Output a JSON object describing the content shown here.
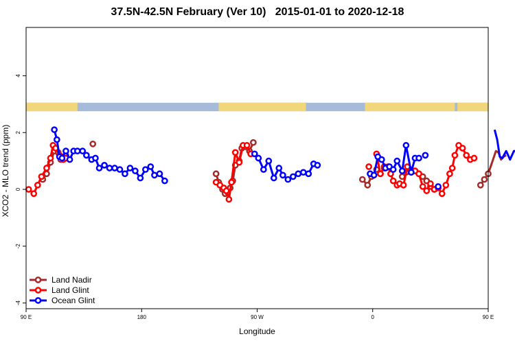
{
  "chart_data": {
    "type": "line",
    "title": "37.5N-42.5N February (Ver 10)   2015-01-01 to 2020-12-18",
    "xlabel": "Longitude",
    "ylabel": "XCO2 - MLO trend (ppm)",
    "xlim": [
      90,
      450
    ],
    "ylim": [
      -4.2,
      5.7
    ],
    "x_ticks": [
      {
        "value": 90,
        "label": "90 E"
      },
      {
        "value": 180,
        "label": "180"
      },
      {
        "value": 270,
        "label": "90 W"
      },
      {
        "value": 360,
        "label": "0"
      },
      {
        "value": 450,
        "label": "90 E"
      },
      {
        "value": 540,
        "label": "180"
      }
    ],
    "y_ticks": [
      {
        "value": -4,
        "label": "-4"
      },
      {
        "value": -2,
        "label": "-2"
      },
      {
        "value": 0,
        "label": "0"
      },
      {
        "value": 2,
        "label": "2"
      },
      {
        "value": 4,
        "label": "4"
      }
    ],
    "legend_position": "bottom-left",
    "series": [
      {
        "name": "Land Nadir",
        "color": "#a52a2a",
        "segments": [
          [
            [
              103,
              0.35
            ],
            [
              106,
              0.55
            ],
            [
              109,
              0.95
            ],
            [
              112,
              1.35
            ],
            [
              115,
              1.3
            ],
            [
              117,
              1.05
            ],
            [
              119,
              1.15
            ],
            [
              121,
              1.2
            ]
          ],
          [
            [
              142,
              1.6
            ]
          ],
          [
            [
              238,
              0.55
            ],
            [
              240,
              0.25
            ],
            [
              243,
              0.0
            ],
            [
              245,
              -0.15
            ],
            [
              247,
              -0.1
            ],
            [
              249,
              0.05
            ],
            [
              251,
              0.3
            ],
            [
              253,
              0.85
            ],
            [
              256,
              1.0
            ],
            [
              258,
              1.45
            ],
            [
              261,
              1.5
            ],
            [
              264,
              1.35
            ],
            [
              267,
              1.65
            ]
          ],
          [
            [
              352,
              0.35
            ],
            [
              356,
              0.15
            ],
            [
              359,
              0.45
            ],
            [
              363,
              0.7
            ],
            [
              366,
              0.55
            ],
            [
              369,
              0.75
            ]
          ],
          [
            [
              383,
              0.45
            ],
            [
              386,
              0.6
            ],
            [
              389,
              0.7
            ],
            [
              393,
              0.65
            ],
            [
              396,
              0.55
            ],
            [
              399,
              0.45
            ],
            [
              402,
              0.3
            ],
            [
              405,
              0.1
            ],
            [
              408,
              0.0
            ]
          ],
          [
            [
              444,
              0.15
            ],
            [
              447,
              0.35
            ],
            [
              450,
              0.55
            ],
            [
              453,
              0.95
            ],
            [
              456,
              1.35
            ],
            [
              458,
              1.3
            ],
            [
              460,
              1.05
            ],
            [
              462,
              1.15
            ],
            [
              464,
              1.2
            ]
          ],
          [
            [
              485,
              1.6
            ]
          ]
        ]
      },
      {
        "name": "Land Glint",
        "color": "#ff0000",
        "segments": [
          [
            [
              92,
              0.0
            ],
            [
              96,
              -0.15
            ],
            [
              99,
              0.15
            ],
            [
              102,
              0.45
            ],
            [
              106,
              0.75
            ],
            [
              109,
              1.1
            ],
            [
              111,
              1.55
            ],
            [
              113,
              1.45
            ],
            [
              116,
              1.2
            ],
            [
              119,
              1.05
            ],
            [
              121,
              1.1
            ]
          ],
          [
            [
              238,
              0.25
            ],
            [
              241,
              0.15
            ],
            [
              244,
              0.05
            ],
            [
              246,
              -0.05
            ],
            [
              248,
              -0.35
            ],
            [
              250,
              0.25
            ],
            [
              253,
              1.3
            ],
            [
              256,
              0.95
            ],
            [
              259,
              1.55
            ],
            [
              262,
              1.55
            ],
            [
              265,
              1.25
            ]
          ],
          [
            [
              357,
              0.8
            ]
          ],
          [
            [
              363,
              1.25
            ],
            [
              366,
              0.55
            ],
            [
              369,
              0.8
            ],
            [
              372,
              0.8
            ],
            [
              374,
              0.55
            ],
            [
              376,
              0.3
            ],
            [
              379,
              0.15
            ],
            [
              381,
              0.2
            ],
            [
              384,
              0.15
            ],
            [
              387,
              0.8
            ],
            [
              390,
              0.6
            ],
            [
              393,
              0.65
            ],
            [
              396,
              0.55
            ],
            [
              399,
              0.1
            ],
            [
              402,
              -0.05
            ],
            [
              405,
              0.2
            ],
            [
              408,
              0.0
            ],
            [
              411,
              0.05
            ],
            [
              414,
              -0.15
            ],
            [
              417,
              0.15
            ],
            [
              420,
              0.55
            ],
            [
              422,
              0.75
            ],
            [
              424,
              1.2
            ],
            [
              427,
              1.55
            ],
            [
              430,
              1.45
            ],
            [
              433,
              1.2
            ],
            [
              436,
              1.05
            ],
            [
              439,
              1.1
            ]
          ]
        ]
      },
      {
        "name": "Ocean Glint",
        "color": "#0000ff",
        "segments": [
          [
            [
              112,
              2.1
            ],
            [
              114,
              1.75
            ],
            [
              116,
              1.15
            ],
            [
              118,
              1.1
            ],
            [
              121,
              1.35
            ],
            [
              124,
              1.05
            ],
            [
              127,
              1.35
            ],
            [
              130,
              1.35
            ],
            [
              134,
              1.35
            ],
            [
              137,
              1.2
            ],
            [
              141,
              1.05
            ],
            [
              144,
              1.1
            ],
            [
              147,
              0.75
            ],
            [
              151,
              0.85
            ],
            [
              155,
              0.75
            ],
            [
              159,
              0.75
            ],
            [
              163,
              0.7
            ],
            [
              167,
              0.55
            ],
            [
              171,
              0.75
            ],
            [
              175,
              0.65
            ],
            [
              179,
              0.4
            ],
            [
              183,
              0.7
            ],
            [
              187,
              0.8
            ],
            [
              190,
              0.5
            ],
            [
              194,
              0.55
            ],
            [
              198,
              0.3
            ]
          ],
          [
            [
              268,
              1.25
            ],
            [
              271,
              1.1
            ],
            [
              275,
              0.7
            ],
            [
              279,
              1.0
            ],
            [
              283,
              0.4
            ],
            [
              287,
              0.75
            ],
            [
              290,
              0.5
            ],
            [
              294,
              0.35
            ],
            [
              298,
              0.45
            ],
            [
              302,
              0.55
            ],
            [
              306,
              0.6
            ],
            [
              310,
              0.55
            ],
            [
              314,
              0.9
            ],
            [
              317,
              0.85
            ]
          ],
          [
            [
              358,
              0.55
            ],
            [
              361,
              0.5
            ],
            [
              364,
              1.15
            ],
            [
              367,
              1.05
            ],
            [
              370,
              0.75
            ],
            [
              373,
              0.8
            ],
            [
              376,
              0.7
            ],
            [
              379,
              1.0
            ],
            [
              383,
              0.65
            ],
            [
              386,
              1.55
            ],
            [
              390,
              0.6
            ],
            [
              393,
              1.1
            ],
            [
              396,
              1.1
            ]
          ],
          [
            [
              401,
              1.2
            ]
          ],
          [
            [
              411,
              0.1
            ]
          ],
          [
            [
              455,
              2.1
            ],
            [
              457,
              1.75
            ],
            [
              459,
              1.15
            ],
            [
              461,
              1.1
            ],
            [
              464,
              1.35
            ],
            [
              467,
              1.05
            ],
            [
              470,
              1.35
            ],
            [
              473,
              1.35
            ],
            [
              477,
              1.35
            ],
            [
              480,
              1.2
            ],
            [
              484,
              1.05
            ],
            [
              487,
              1.1
            ],
            [
              490,
              0.75
            ],
            [
              494,
              0.85
            ],
            [
              498,
              0.75
            ]
          ]
        ]
      }
    ],
    "background_band": {
      "y_range": [
        2.75,
        3.05
      ],
      "ocean_color": "#a5bbd9",
      "land_color": "#f2d67a",
      "land_spans": [
        [
          90,
          130
        ],
        [
          240,
          308
        ],
        [
          354,
          424
        ],
        [
          426,
          451
        ]
      ]
    },
    "grid": false
  }
}
